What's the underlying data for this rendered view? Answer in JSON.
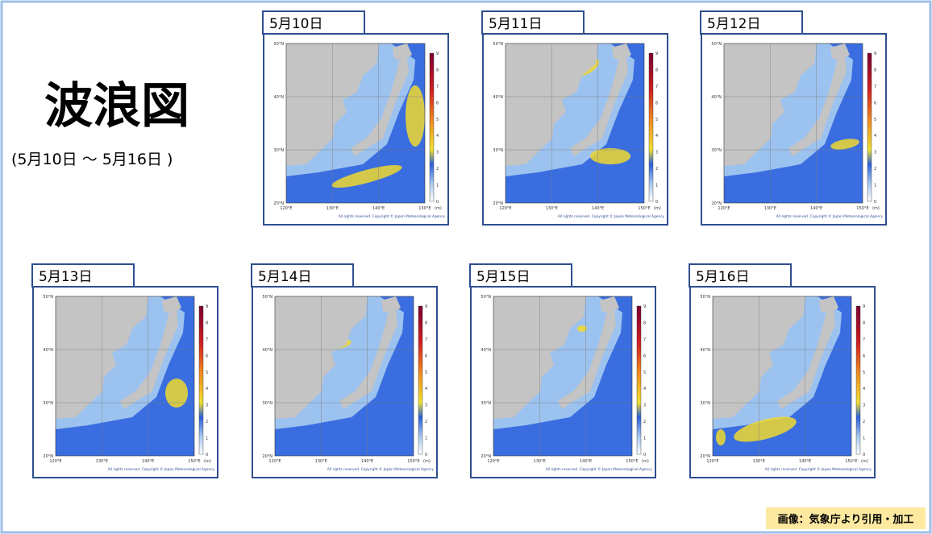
{
  "header": {
    "title": "波浪図",
    "subtitle": "(5月10日 ～ 5月16日 )"
  },
  "panels": [
    {
      "date": "5月10日"
    },
    {
      "date": "5月11日"
    },
    {
      "date": "5月12日"
    },
    {
      "date": "5月13日"
    },
    {
      "date": "5月14日"
    },
    {
      "date": "5月15日"
    },
    {
      "date": "5月16日"
    }
  ],
  "map": {
    "lat_labels": [
      "50°N",
      "40°N",
      "30°N",
      "20°N"
    ],
    "lon_labels": [
      "120°E",
      "130°E",
      "140°E",
      "150°E"
    ],
    "colorbar_ticks": [
      0,
      1,
      2,
      3,
      4,
      5,
      6,
      7,
      8,
      9
    ],
    "unit": "(m)",
    "copyright": "All rights reserved. Copyright © Japan Meteorological Agency"
  },
  "credit": "画像：気象庁より引用・加工"
}
